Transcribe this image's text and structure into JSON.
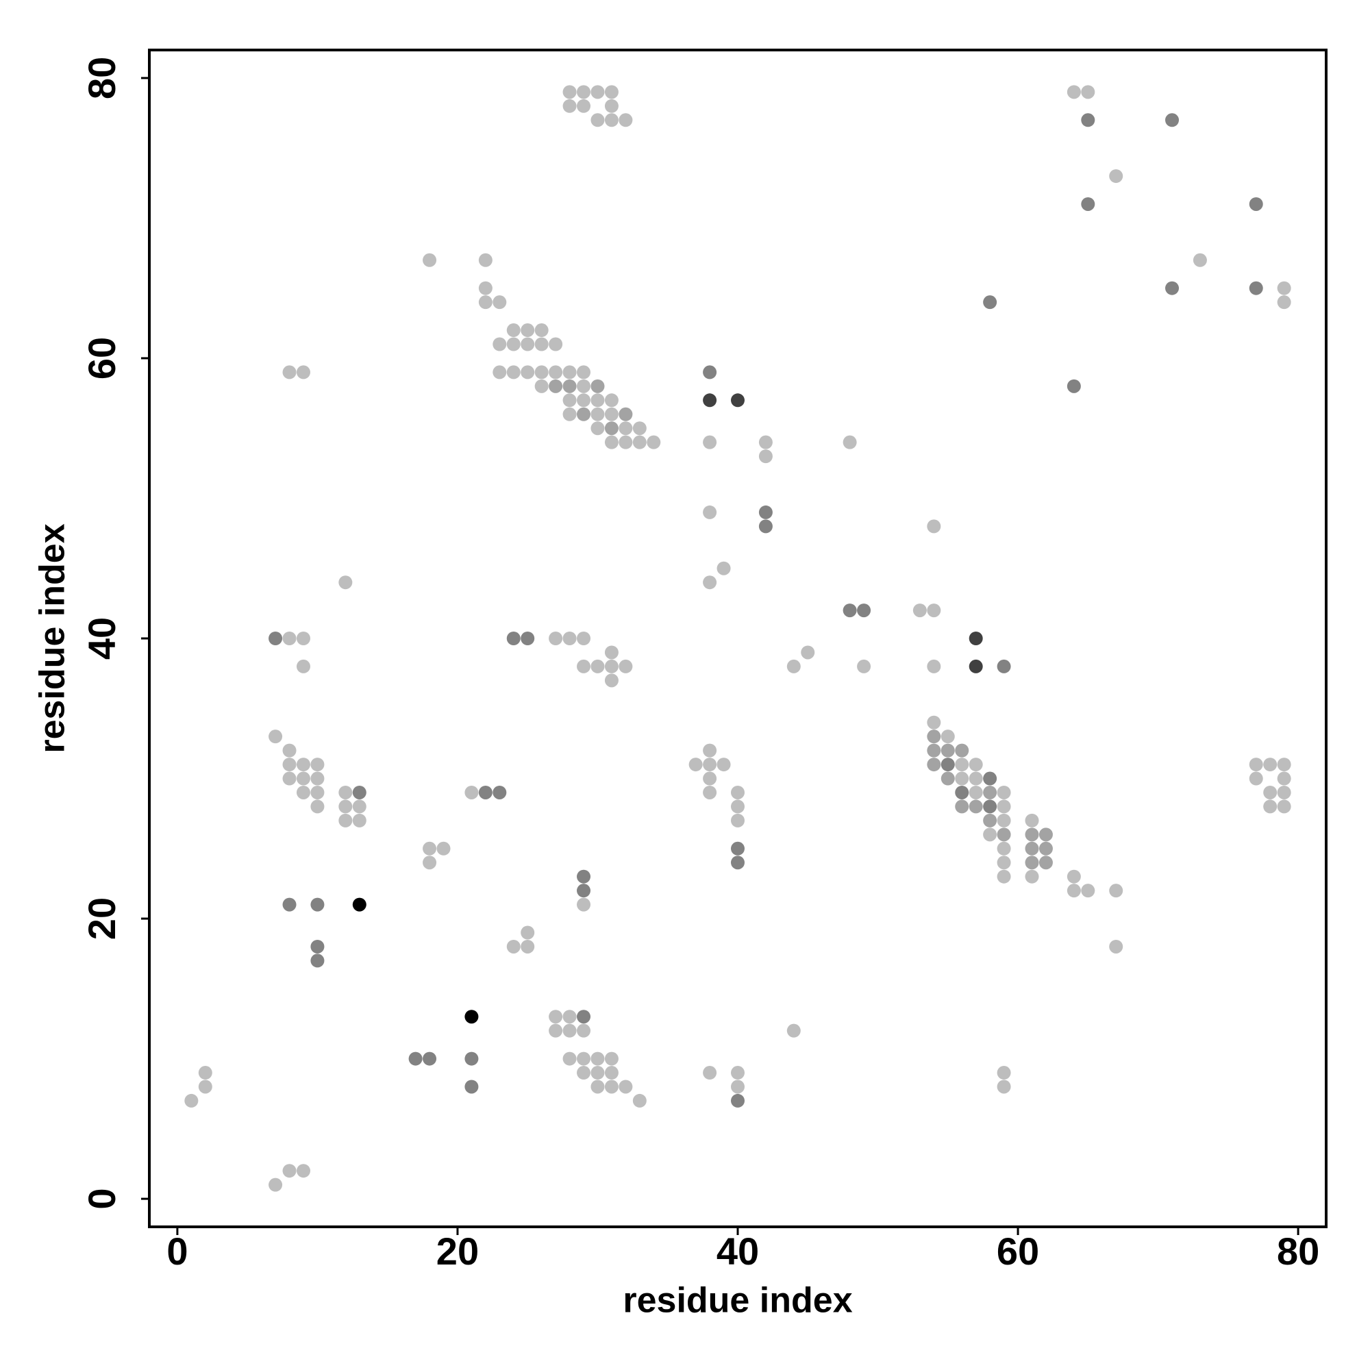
{
  "chart_data": {
    "type": "scatter",
    "xlabel": "residue index",
    "ylabel": "residue index",
    "xlim": [
      -2,
      82
    ],
    "ylim": [
      -2,
      82
    ],
    "xticks": [
      0,
      20,
      40,
      60,
      80
    ],
    "yticks": [
      0,
      20,
      40,
      60,
      80
    ],
    "series": [
      {
        "color": "#bdbdbd",
        "x": [
          28,
          29,
          30,
          31,
          64,
          65,
          28,
          29,
          31,
          30,
          31,
          32,
          67,
          18,
          22,
          73,
          22,
          79,
          22,
          23,
          79,
          24,
          25,
          26,
          23,
          24,
          25,
          26,
          27,
          8,
          9,
          23,
          24,
          25,
          26,
          27,
          28,
          29,
          26,
          29,
          28,
          29,
          30,
          31,
          28,
          30,
          31,
          30,
          32,
          33,
          31,
          32,
          33,
          34,
          38,
          42,
          48,
          42,
          38,
          54,
          39,
          12,
          38,
          53,
          54,
          8,
          9,
          27,
          28,
          29,
          31,
          45,
          9,
          29,
          30,
          31,
          32,
          44,
          49,
          54,
          31,
          54,
          7,
          55,
          8,
          38,
          8,
          9,
          10,
          37,
          38,
          39,
          56,
          57,
          77,
          78,
          79,
          8,
          9,
          10,
          38,
          56,
          57,
          77,
          79,
          9,
          10,
          12,
          21,
          38,
          40,
          57,
          59,
          78,
          79,
          10,
          12,
          13,
          40,
          59,
          78,
          79,
          12,
          13,
          40,
          59,
          61,
          58,
          18,
          19,
          59,
          18,
          59,
          59,
          61,
          64,
          64,
          65,
          67,
          29,
          25,
          24,
          25,
          67,
          27,
          28,
          27,
          28,
          29,
          44,
          28,
          29,
          30,
          31,
          2,
          29,
          30,
          31,
          38,
          40,
          59,
          2,
          30,
          31,
          32,
          40,
          59,
          1,
          33,
          8,
          9,
          7
        ],
        "values": [
          79,
          79,
          79,
          79,
          79,
          79,
          78,
          78,
          78,
          77,
          77,
          77,
          73,
          67,
          67,
          67,
          65,
          65,
          64,
          64,
          64,
          62,
          62,
          62,
          61,
          61,
          61,
          61,
          61,
          59,
          59,
          59,
          59,
          59,
          59,
          59,
          59,
          59,
          58,
          58,
          57,
          57,
          57,
          57,
          56,
          56,
          56,
          55,
          55,
          55,
          54,
          54,
          54,
          54,
          54,
          54,
          54,
          53,
          49,
          48,
          45,
          44,
          44,
          42,
          42,
          40,
          40,
          40,
          40,
          40,
          39,
          39,
          38,
          38,
          38,
          38,
          38,
          38,
          38,
          38,
          37,
          34,
          33,
          33,
          32,
          32,
          31,
          31,
          31,
          31,
          31,
          31,
          31,
          31,
          31,
          31,
          31,
          30,
          30,
          30,
          30,
          30,
          30,
          30,
          30,
          29,
          29,
          29,
          29,
          29,
          29,
          29,
          29,
          29,
          29,
          28,
          28,
          28,
          28,
          28,
          28,
          28,
          27,
          27,
          27,
          27,
          27,
          26,
          25,
          25,
          25,
          24,
          24,
          23,
          23,
          23,
          22,
          22,
          22,
          21,
          19,
          18,
          18,
          18,
          13,
          13,
          12,
          12,
          12,
          12,
          10,
          10,
          10,
          10,
          9,
          9,
          9,
          9,
          9,
          9,
          9,
          8,
          8,
          8,
          8,
          8,
          8,
          7,
          7,
          2,
          2,
          1
        ]
      },
      {
        "color": "#a3a3a3",
        "x": [
          27,
          28,
          30,
          29,
          32,
          31,
          54,
          54,
          55,
          56,
          54,
          55,
          58,
          56,
          57,
          58,
          59,
          61,
          62,
          61,
          62,
          61,
          62
        ],
        "values": [
          58,
          58,
          58,
          56,
          56,
          55,
          33,
          32,
          32,
          32,
          31,
          30,
          29,
          28,
          28,
          27,
          26,
          26,
          26,
          25,
          25,
          24,
          24
        ]
      },
      {
        "color": "#828282",
        "x": [
          65,
          71,
          65,
          77,
          71,
          77,
          58,
          38,
          64,
          42,
          42,
          48,
          49,
          7,
          24,
          25,
          59,
          55,
          58,
          13,
          22,
          23,
          56,
          58,
          40,
          40,
          29,
          29,
          8,
          10,
          10,
          10,
          29,
          17,
          18,
          21,
          21,
          40
        ],
        "values": [
          77,
          77,
          71,
          71,
          65,
          65,
          64,
          59,
          58,
          49,
          48,
          42,
          42,
          40,
          40,
          40,
          38,
          31,
          30,
          29,
          29,
          29,
          29,
          28,
          25,
          24,
          23,
          22,
          21,
          21,
          18,
          17,
          13,
          10,
          10,
          10,
          8,
          7
        ]
      },
      {
        "color": "#404040",
        "x": [
          38,
          40,
          57,
          57
        ],
        "values": [
          57,
          57,
          40,
          38
        ]
      },
      {
        "color": "#000000",
        "x": [
          13,
          21
        ],
        "values": [
          21,
          13
        ]
      }
    ]
  }
}
